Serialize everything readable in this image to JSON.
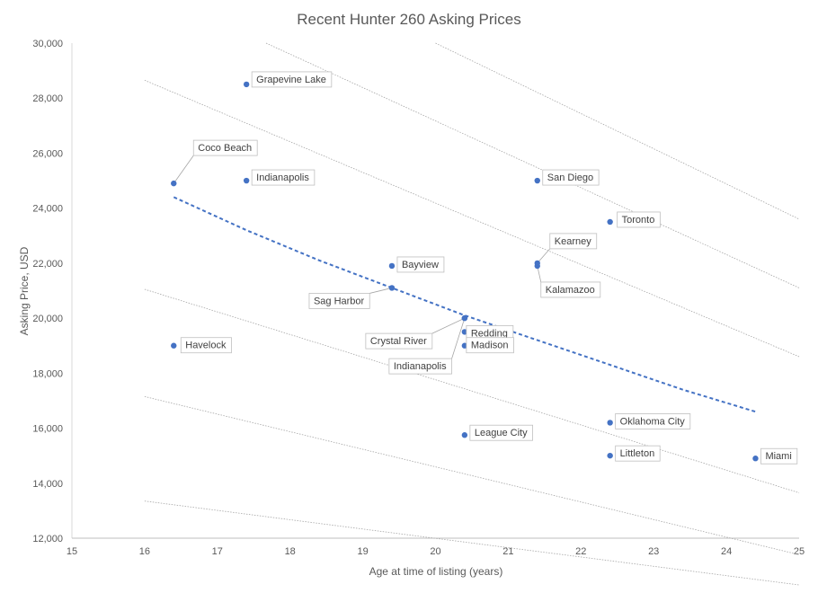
{
  "chart_data": {
    "type": "scatter",
    "title": "Recent Hunter 260 Asking Prices",
    "xlabel": "Age at time of listing (years)",
    "ylabel": "Asking Price, USD",
    "xlim": [
      15,
      25
    ],
    "ylim": [
      12000,
      30000
    ],
    "x_ticks": [
      "15",
      "16",
      "17",
      "18",
      "19",
      "20",
      "21",
      "22",
      "23",
      "24",
      "25"
    ],
    "y_ticks": [
      "12,000",
      "14,000",
      "16,000",
      "18,000",
      "20,000",
      "22,000",
      "24,000",
      "26,000",
      "28,000",
      "30,000"
    ],
    "grid": false,
    "point_color": "#4472c4",
    "trend_color": "#4472c4",
    "reference_line_color": "#a6a6a6",
    "points": [
      {
        "label": "Grapevine Lake",
        "x": 17.4,
        "y": 28500
      },
      {
        "label": "Coco Beach",
        "x": 16.4,
        "y": 24900
      },
      {
        "label": "Indianapolis",
        "x": 17.4,
        "y": 25000
      },
      {
        "label": "San Diego",
        "x": 21.4,
        "y": 25000
      },
      {
        "label": "Toronto",
        "x": 22.4,
        "y": 23500
      },
      {
        "label": "Kearney",
        "x": 21.4,
        "y": 22000
      },
      {
        "label": "Kalamazoo",
        "x": 21.4,
        "y": 21900
      },
      {
        "label": "Bayview",
        "x": 19.4,
        "y": 21900
      },
      {
        "label": "Sag Harbor",
        "x": 19.4,
        "y": 21100
      },
      {
        "label": "Crystal River",
        "x": 20.4,
        "y": 20000
      },
      {
        "label": "Indianapolis",
        "x": 20.4,
        "y": 20000
      },
      {
        "label": "Redding",
        "x": 20.4,
        "y": 19500
      },
      {
        "label": "Madison",
        "x": 20.4,
        "y": 19000
      },
      {
        "label": "Havelock",
        "x": 16.4,
        "y": 19000
      },
      {
        "label": "Oklahoma City",
        "x": 22.4,
        "y": 16200
      },
      {
        "label": "League City",
        "x": 20.4,
        "y": 15750
      },
      {
        "label": "Littleton",
        "x": 22.4,
        "y": 15000
      },
      {
        "label": "Miami",
        "x": 24.4,
        "y": 14900
      }
    ],
    "trend_line": {
      "x": [
        16.4,
        17.4,
        18.4,
        19.4,
        20.4,
        21.4,
        22.4,
        23.4,
        24.4
      ],
      "y": [
        24400,
        23200,
        22100,
        21100,
        20100,
        19200,
        18300,
        17400,
        16600
      ]
    },
    "reference_lines": [
      {
        "x": [
          16,
          25
        ],
        "y": [
          13350,
          10300
        ]
      },
      {
        "x": [
          16,
          25
        ],
        "y": [
          17150,
          11400
        ]
      },
      {
        "x": [
          16,
          25
        ],
        "y": [
          21050,
          13650
        ]
      },
      {
        "x": [
          16,
          25
        ],
        "y": [
          28650,
          18600
        ]
      },
      {
        "x": [
          17.67,
          25
        ],
        "y": [
          30000,
          21100
        ]
      },
      {
        "x": [
          20,
          25
        ],
        "y": [
          30000,
          23600
        ]
      }
    ]
  }
}
